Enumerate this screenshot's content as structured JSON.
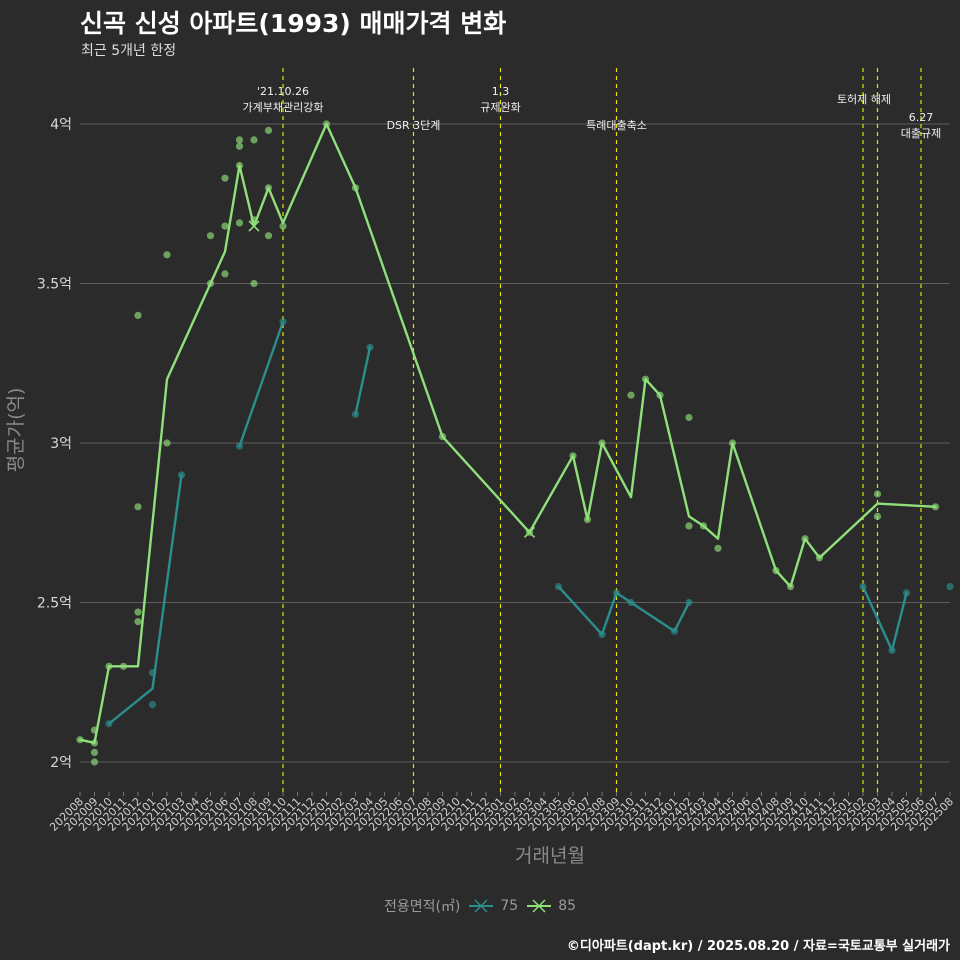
{
  "title": "신곡 신성 아파트(1993) 매매가격 변화",
  "subtitle": "최근 5개년 한정",
  "caption": "©디아파트(dapt.kr) / 2025.08.20 / 자료=국토교통부 실거래가",
  "legend": {
    "title": "전용면적(㎡)",
    "items": [
      {
        "label": "75",
        "color": "#2a8f8c"
      },
      {
        "label": "85",
        "color": "#8fe07a"
      }
    ]
  },
  "chart_data": {
    "type": "line",
    "xlabel": "거래년월",
    "ylabel": "평균가(억)",
    "ylim": [
      1.9,
      4.2
    ],
    "yticks": [
      {
        "value": 2.0,
        "label": "2억"
      },
      {
        "value": 2.5,
        "label": "2.5억"
      },
      {
        "value": 3.0,
        "label": "3억"
      },
      {
        "value": 3.5,
        "label": "3.5억"
      },
      {
        "value": 4.0,
        "label": "4억"
      }
    ],
    "x_categories": [
      "202008",
      "202009",
      "202010",
      "202011",
      "202012",
      "202101",
      "202102",
      "202103",
      "202104",
      "202105",
      "202106",
      "202107",
      "202108",
      "202109",
      "202110",
      "202111",
      "202112",
      "202201",
      "202202",
      "202203",
      "202204",
      "202205",
      "202206",
      "202207",
      "202208",
      "202209",
      "202210",
      "202211",
      "202212",
      "202301",
      "202302",
      "202303",
      "202304",
      "202305",
      "202306",
      "202307",
      "202308",
      "202309",
      "202310",
      "202311",
      "202312",
      "202401",
      "202402",
      "202403",
      "202404",
      "202405",
      "202406",
      "202407",
      "202408",
      "202409",
      "202410",
      "202411",
      "202412",
      "202501",
      "202502",
      "202503",
      "202504",
      "202505",
      "202506",
      "202507",
      "202508"
    ],
    "grid": true,
    "legend_position": "bottom",
    "series": [
      {
        "name": "75",
        "color": "#2a8f8c",
        "segments": [
          [
            [
              "202010",
              2.12
            ],
            [
              "202101",
              2.23
            ],
            [
              "202103",
              2.9
            ]
          ],
          [
            [
              "202107",
              2.99
            ],
            [
              "202110",
              3.38
            ]
          ],
          [
            [
              "202203",
              3.09
            ],
            [
              "202204",
              3.3
            ]
          ],
          [
            [
              "202305",
              2.55
            ],
            [
              "202308",
              2.4
            ],
            [
              "202309",
              2.53
            ],
            [
              "202310",
              2.5
            ],
            [
              "202401",
              2.41
            ],
            [
              "202402",
              2.5
            ]
          ],
          [
            [
              "202502",
              2.55
            ],
            [
              "202504",
              2.35
            ],
            [
              "202505",
              2.53
            ]
          ]
        ],
        "points": [
          [
            "202010",
            2.12
          ],
          [
            "202101",
            2.18
          ],
          [
            "202101",
            2.28
          ],
          [
            "202103",
            2.9
          ],
          [
            "202107",
            2.99
          ],
          [
            "202110",
            3.38
          ],
          [
            "202203",
            3.09
          ],
          [
            "202204",
            3.3
          ],
          [
            "202305",
            2.55
          ],
          [
            "202308",
            2.4
          ],
          [
            "202309",
            2.53
          ],
          [
            "202310",
            2.5
          ],
          [
            "202401",
            2.41
          ],
          [
            "202402",
            2.5
          ],
          [
            "202502",
            2.55
          ],
          [
            "202504",
            2.35
          ],
          [
            "202505",
            2.53
          ],
          [
            "202508",
            2.55
          ]
        ]
      },
      {
        "name": "85",
        "color": "#8fe07a",
        "segments": [
          [
            [
              "202008",
              2.07
            ],
            [
              "202009",
              2.06
            ],
            [
              "202010",
              2.3
            ],
            [
              "202011",
              2.3
            ],
            [
              "202012",
              2.3
            ],
            [
              "202102",
              3.2
            ],
            [
              "202106",
              3.6
            ],
            [
              "202107",
              3.87
            ],
            [
              "202108",
              3.68
            ],
            [
              "202109",
              3.8
            ],
            [
              "202110",
              3.69
            ],
            [
              "202201",
              4.0
            ],
            [
              "202203",
              3.8
            ],
            [
              "202209",
              3.02
            ],
            [
              "202303",
              2.72
            ],
            [
              "202306",
              2.96
            ],
            [
              "202307",
              2.76
            ],
            [
              "202308",
              3.0
            ],
            [
              "202310",
              2.83
            ],
            [
              "202311",
              3.2
            ],
            [
              "202312",
              3.15
            ],
            [
              "202402",
              2.77
            ],
            [
              "202403",
              2.74
            ],
            [
              "202404",
              2.7
            ],
            [
              "202405",
              3.0
            ],
            [
              "202408",
              2.6
            ],
            [
              "202409",
              2.55
            ],
            [
              "202410",
              2.7
            ],
            [
              "202411",
              2.64
            ],
            [
              "202503",
              2.81
            ],
            [
              "202507",
              2.8
            ]
          ]
        ],
        "points": [
          [
            "202008",
            2.07
          ],
          [
            "202009",
            2.06
          ],
          [
            "202009",
            2.0
          ],
          [
            "202009",
            2.03
          ],
          [
            "202009",
            2.1
          ],
          [
            "202010",
            2.3
          ],
          [
            "202011",
            2.3
          ],
          [
            "202012",
            2.44
          ],
          [
            "202012",
            2.47
          ],
          [
            "202012",
            2.8
          ],
          [
            "202012",
            3.4
          ],
          [
            "202102",
            3.0
          ],
          [
            "202102",
            3.59
          ],
          [
            "202105",
            3.5
          ],
          [
            "202105",
            3.65
          ],
          [
            "202106",
            3.53
          ],
          [
            "202106",
            3.68
          ],
          [
            "202106",
            3.83
          ],
          [
            "202107",
            3.69
          ],
          [
            "202107",
            3.87
          ],
          [
            "202107",
            3.93
          ],
          [
            "202107",
            3.95
          ],
          [
            "202108",
            3.5
          ],
          [
            "202108",
            3.7
          ],
          [
            "202108",
            3.95
          ],
          [
            "202109",
            3.65
          ],
          [
            "202109",
            3.8
          ],
          [
            "202109",
            3.98
          ],
          [
            "202110",
            3.68
          ],
          [
            "202201",
            4.0
          ],
          [
            "202203",
            3.8
          ],
          [
            "202209",
            3.02
          ],
          [
            "202303",
            2.72
          ],
          [
            "202306",
            2.96
          ],
          [
            "202307",
            2.76
          ],
          [
            "202308",
            3.0
          ],
          [
            "202310",
            3.15
          ],
          [
            "202311",
            3.2
          ],
          [
            "202312",
            3.15
          ],
          [
            "202402",
            2.74
          ],
          [
            "202402",
            3.08
          ],
          [
            "202403",
            2.74
          ],
          [
            "202404",
            2.67
          ],
          [
            "202405",
            3.0
          ],
          [
            "202408",
            2.6
          ],
          [
            "202409",
            2.55
          ],
          [
            "202410",
            2.7
          ],
          [
            "202411",
            2.64
          ],
          [
            "202503",
            2.77
          ],
          [
            "202503",
            2.84
          ],
          [
            "202507",
            2.8
          ]
        ]
      }
    ],
    "cross_markers": [
      {
        "series": "85",
        "x": "202108",
        "y": 3.68
      },
      {
        "series": "85",
        "x": "202303",
        "y": 2.72
      }
    ],
    "events": [
      {
        "x": "202110",
        "lines": [
          "'21.10.26",
          "가계부채관리강화"
        ],
        "level": "high"
      },
      {
        "x": "202207",
        "lines": [
          "DSR 3단계"
        ],
        "level": "low"
      },
      {
        "x": "202301",
        "lines": [
          "1.3",
          "규제완화"
        ],
        "level": "high"
      },
      {
        "x": "202309",
        "lines": [
          "특례대출축소"
        ],
        "level": "low"
      },
      {
        "x": "202502",
        "lines": [
          "토허제 해제"
        ],
        "level": "mid"
      },
      {
        "x": "202503",
        "lines": [],
        "level": "none"
      },
      {
        "x": "202506",
        "lines": [
          "6.27",
          "대출규제"
        ],
        "level": "right"
      }
    ]
  }
}
